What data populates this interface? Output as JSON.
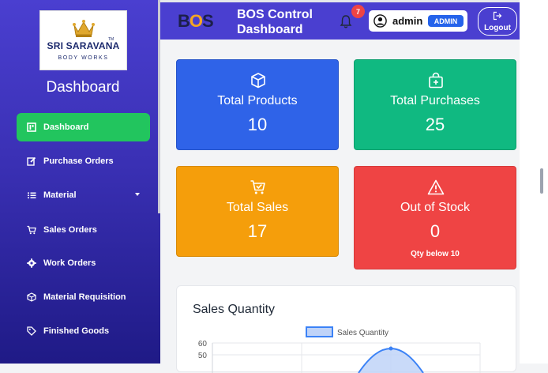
{
  "sidebar": {
    "logo": {
      "brand": "SRI SARAVANA",
      "tm": "TM",
      "subtitle": "BODY WORKS"
    },
    "title": "Dashboard",
    "items": [
      {
        "label": "Dashboard",
        "icon": "dashboard-icon",
        "active": true
      },
      {
        "label": "Purchase Orders",
        "icon": "edit-icon"
      },
      {
        "label": "Material",
        "icon": "list-icon",
        "has_submenu": true
      },
      {
        "label": "Sales Orders",
        "icon": "cart-icon"
      },
      {
        "label": "Work Orders",
        "icon": "gear-icon"
      },
      {
        "label": "Material Requisition",
        "icon": "box-icon"
      },
      {
        "label": "Finished Goods",
        "icon": "tag-icon"
      }
    ]
  },
  "header": {
    "logo_text_left": "B",
    "logo_text_gear": "O",
    "logo_text_right": "S",
    "title_line1": "BOS Control",
    "title_line2": "Dashboard",
    "notification_count": "7",
    "username": "admin",
    "role": "ADMIN",
    "logout_label": "Logout"
  },
  "cards": {
    "products": {
      "label": "Total Products",
      "value": "10",
      "icon": "cube-icon",
      "color": "#2f63e8"
    },
    "purchases": {
      "label": "Total Purchases",
      "value": "25",
      "icon": "bag-plus-icon",
      "color": "#10b981"
    },
    "sales": {
      "label": "Total Sales",
      "value": "17",
      "icon": "cart-check-icon",
      "color": "#f59e0b"
    },
    "stock": {
      "label": "Out of Stock",
      "value": "0",
      "sub": "Qty below 10",
      "icon": "warning-icon",
      "color": "#ef4444"
    }
  },
  "chart": {
    "title": "Sales Quantity"
  },
  "chart_data": {
    "type": "area",
    "title": "Sales Quantity",
    "series": [
      {
        "name": "Sales Quantity",
        "color": "#3b82f6"
      }
    ],
    "y_ticks": [
      60,
      50
    ],
    "peak": 55
  }
}
